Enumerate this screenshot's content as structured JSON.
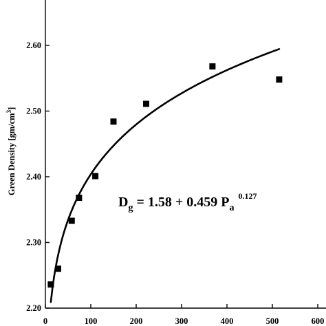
{
  "chart_data": {
    "type": "scatter",
    "xlabel": "",
    "ylabel": "Green Density [gm/cm",
    "ylabel_sup": "3",
    "ylabel_close": "]",
    "xlim": [
      0,
      600
    ],
    "ylim": [
      2.2,
      2.7
    ],
    "x_ticks": [
      0,
      100,
      200,
      300,
      400,
      500,
      600
    ],
    "x_tick_labels": [
      "0",
      "100",
      "200",
      "300",
      "400",
      "500",
      "600"
    ],
    "y_ticks": [
      2.2,
      2.3,
      2.4,
      2.5,
      2.6
    ],
    "y_tick_labels": [
      "2.20",
      "2.30",
      "2.40",
      "2.50",
      "2.60"
    ],
    "grid": false,
    "series": [
      {
        "marker": "square",
        "x": [
          12,
          28,
          58,
          74,
          110,
          150,
          222,
          368,
          515
        ],
        "y": [
          2.236,
          2.26,
          2.333,
          2.368,
          2.401,
          2.484,
          2.511,
          2.568,
          2.548
        ]
      }
    ],
    "fit": {
      "a": 1.58,
      "b": 0.459,
      "c": 0.127,
      "x_range": [
        12,
        515
      ]
    },
    "annotation": {
      "lhs_main": "D",
      "lhs_sub": "g",
      "rhs_main": " = 1.58 + 0.459 P",
      "rhs_sub": "a",
      "exponent": "0.127"
    },
    "colors": {
      "ink": "#000000",
      "background": "#ffffff"
    }
  }
}
